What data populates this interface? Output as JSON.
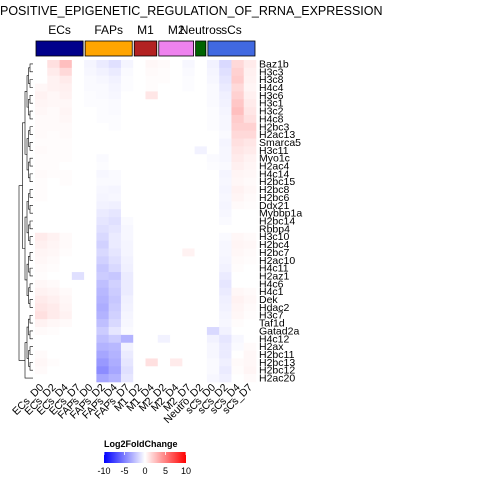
{
  "chart_data": {
    "type": "heatmap",
    "title": "POSITIVE_EPIGENETIC_REGULATION_OF_RRNA_EXPRESSION",
    "groups": [
      {
        "name": "ECs",
        "color": "#00008B"
      },
      {
        "name": "FAPs",
        "color": "#FFA500"
      },
      {
        "name": "M1",
        "color": "#B22222"
      },
      {
        "name": "M2",
        "color": "#EE82EE"
      },
      {
        "name": "Neutros",
        "color": "#006400"
      },
      {
        "name": "sCs",
        "color": "#4169E1"
      }
    ],
    "columns": [
      {
        "label": "ECs_D0",
        "group": "ECs"
      },
      {
        "label": "ECs_D2",
        "group": "ECs"
      },
      {
        "label": "ECs_D4",
        "group": "ECs"
      },
      {
        "label": "ECs_D7",
        "group": "ECs"
      },
      {
        "label": "FAPs_D0",
        "group": "FAPs"
      },
      {
        "label": "FAPs_D2",
        "group": "FAPs"
      },
      {
        "label": "FAPs_D4",
        "group": "FAPs"
      },
      {
        "label": "FAPs_D7",
        "group": "FAPs"
      },
      {
        "label": "M1_D2",
        "group": "M1"
      },
      {
        "label": "M1_D4",
        "group": "M1"
      },
      {
        "label": "M2_D2",
        "group": "M2"
      },
      {
        "label": "M2_D4",
        "group": "M2"
      },
      {
        "label": "M2_D7",
        "group": "M2"
      },
      {
        "label": "Neutro_D2",
        "group": "Neutros"
      },
      {
        "label": "sCs_D0",
        "group": "sCs"
      },
      {
        "label": "sCs_D2",
        "group": "sCs"
      },
      {
        "label": "sCs_D4",
        "group": "sCs"
      },
      {
        "label": "sCs_D7",
        "group": "sCs"
      }
    ],
    "rows": [
      "Baz1b",
      "H3c3",
      "H3c8",
      "H4c4",
      "H3c6",
      "H3c1",
      "H3c2",
      "H4c8",
      "H2bc3",
      "H2ac13",
      "Smarca5",
      "H3c11",
      "Myo1c",
      "H2ac4",
      "H4c14",
      "H2bc15",
      "H2bc8",
      "H2bc6",
      "Ddx21",
      "Mybbp1a",
      "H2bc14",
      "Rbbp4",
      "H3c10",
      "H2bc4",
      "H2bc7",
      "H2ac10",
      "H4c11",
      "H2az1",
      "H4c6",
      "H4c1",
      "Dek",
      "Hdac2",
      "H3c7",
      "Taf1d",
      "Gatad2a",
      "H4c12",
      "H2ax",
      "H2bc11",
      "H2bc13",
      "H2bc12",
      "H2ac20"
    ],
    "values": [
      [
        0,
        1.2,
        2.5,
        0,
        -0.4,
        -0.8,
        -1.2,
        -0.4,
        0,
        0.3,
        0.2,
        0,
        -0.3,
        0,
        -0.5,
        -1.5,
        1.5,
        0.8
      ],
      [
        0,
        0.8,
        1.5,
        0,
        -0.3,
        -0.5,
        -0.8,
        -0.2,
        0,
        0.2,
        0.1,
        0,
        -0.2,
        0,
        -0.4,
        -1.2,
        1.8,
        0.6
      ],
      [
        0,
        0.5,
        0.8,
        0,
        -0.2,
        -0.3,
        -0.5,
        -0.1,
        0,
        0.1,
        0.1,
        0,
        -0.1,
        0,
        -0.3,
        -1.0,
        2.0,
        0.5
      ],
      [
        0.3,
        0.5,
        0.6,
        0,
        -0.2,
        -0.2,
        -0.4,
        -0.1,
        0,
        0.1,
        0,
        0,
        -0.1,
        0,
        -0.2,
        -0.8,
        1.5,
        0.4
      ],
      [
        0.5,
        0.3,
        0.5,
        0,
        -0.1,
        -0.2,
        -0.3,
        0,
        0,
        1.0,
        0,
        0,
        0,
        0,
        -0.2,
        -0.6,
        1.8,
        0.6
      ],
      [
        0.4,
        0.3,
        0.3,
        0,
        -0.1,
        -0.1,
        -0.2,
        0,
        0,
        0,
        0,
        0,
        0,
        0,
        -0.2,
        -0.5,
        2.2,
        0.8
      ],
      [
        0.3,
        0.2,
        0.4,
        0,
        0,
        -0.1,
        -0.2,
        0,
        0,
        0,
        0,
        0,
        0,
        0,
        -0.1,
        -0.4,
        2.5,
        1.0
      ],
      [
        0.2,
        0.2,
        0.3,
        0,
        0,
        -0.1,
        -0.1,
        0,
        0,
        0,
        0,
        0,
        0,
        0,
        -0.1,
        -0.3,
        2.0,
        1.2
      ],
      [
        0.2,
        0.2,
        0.2,
        0,
        0,
        0,
        -0.1,
        0,
        0,
        0,
        0,
        0,
        0,
        0,
        -0.1,
        -0.3,
        1.8,
        1.8
      ],
      [
        0.2,
        0.1,
        0.2,
        0,
        0,
        0,
        0,
        0,
        0,
        0,
        0,
        0,
        0,
        0,
        0,
        -0.2,
        1.5,
        1.5
      ],
      [
        0.1,
        0.1,
        0.1,
        0,
        0,
        0,
        0,
        0,
        0,
        0,
        0,
        0,
        0,
        0,
        0,
        -0.4,
        1.2,
        1.0
      ],
      [
        0.2,
        0.1,
        0.1,
        0,
        0,
        0,
        0,
        0,
        0,
        0,
        0,
        0,
        0,
        -0.5,
        0,
        -0.3,
        1.0,
        0.8
      ],
      [
        0.1,
        0.1,
        0.1,
        0,
        0,
        -0.2,
        0,
        0,
        0,
        0,
        0,
        0,
        0,
        0,
        -0.2,
        -0.3,
        0.8,
        0.5
      ],
      [
        0.1,
        0.1,
        0,
        0,
        0,
        -0.1,
        0,
        0,
        0,
        0,
        0,
        0,
        0,
        0,
        -0.1,
        -0.2,
        0.6,
        0.4
      ],
      [
        0.2,
        0.1,
        0.1,
        0,
        0,
        -0.3,
        -0.2,
        0,
        0,
        0,
        0,
        0,
        0,
        0,
        0,
        -0.4,
        0.4,
        0.3
      ],
      [
        0.1,
        0,
        0.1,
        0,
        0,
        -0.2,
        -0.2,
        0,
        0,
        0,
        0,
        0,
        0,
        0,
        0,
        -0.3,
        0.3,
        0.2
      ],
      [
        0.1,
        0,
        0,
        0,
        0,
        -0.3,
        -0.4,
        0,
        0,
        0,
        0,
        0,
        0,
        0,
        0,
        -0.4,
        0.5,
        0.3
      ],
      [
        0.1,
        0,
        0,
        0,
        0,
        -0.4,
        -0.3,
        0,
        0,
        0,
        0,
        0,
        0,
        0,
        0,
        -0.3,
        0.4,
        0.2
      ],
      [
        0,
        0,
        0,
        0,
        0,
        -0.5,
        -0.6,
        0,
        0,
        0,
        0,
        0,
        0,
        0,
        0,
        -0.4,
        0.2,
        0.1
      ],
      [
        0,
        0,
        0,
        0,
        0,
        -0.8,
        -1.0,
        0,
        0,
        0,
        0,
        0,
        0,
        0,
        0,
        -0.3,
        0,
        0
      ],
      [
        0,
        0,
        0,
        0,
        0,
        -1.0,
        -1.2,
        -0.2,
        0,
        0,
        0,
        0,
        0,
        0,
        0,
        -0.2,
        0,
        0
      ],
      [
        0,
        0,
        0,
        0,
        0,
        -1.2,
        -1.0,
        -0.3,
        0,
        0,
        0,
        0,
        0,
        0,
        0,
        0,
        0,
        0
      ],
      [
        0.8,
        0.5,
        0.2,
        0,
        0,
        -1.5,
        -0.8,
        -0.3,
        0,
        0,
        0,
        0,
        0,
        0,
        0,
        -0.2,
        0.3,
        0.2
      ],
      [
        0.6,
        0.4,
        0.2,
        0,
        0,
        -1.8,
        -0.8,
        -0.4,
        0,
        0,
        0,
        0,
        0,
        0,
        0,
        -0.3,
        0.4,
        0.3
      ],
      [
        0.4,
        0.3,
        0.1,
        0,
        0,
        -1.5,
        -1.0,
        -0.4,
        0,
        0,
        0,
        0,
        0.5,
        0,
        0,
        -0.3,
        0.3,
        0.2
      ],
      [
        0.3,
        0.2,
        0,
        0,
        0,
        -1.8,
        -1.2,
        -0.5,
        0,
        0,
        0,
        0,
        0,
        0,
        0,
        -0.4,
        0.2,
        0.1
      ],
      [
        0.2,
        0.1,
        0,
        0,
        0,
        -2.2,
        -1.5,
        -0.6,
        0,
        0,
        0,
        0,
        0,
        0,
        0,
        -0.5,
        0.1,
        0
      ],
      [
        0.1,
        0,
        0,
        -1.2,
        0,
        -2.0,
        -2.2,
        -0.8,
        0,
        0,
        0,
        0,
        0,
        0,
        0,
        -0.8,
        0,
        0
      ],
      [
        0.3,
        0.2,
        0,
        0,
        0,
        -2.5,
        -1.8,
        -0.8,
        0,
        0,
        0,
        0,
        0,
        0,
        0,
        -1.0,
        0,
        0
      ],
      [
        0.5,
        0.4,
        0.2,
        0,
        0,
        -2.8,
        -2.0,
        -0.8,
        0,
        0,
        0,
        0,
        0,
        0,
        0,
        -0.8,
        0.3,
        0.2
      ],
      [
        0.8,
        0.6,
        0.3,
        0,
        0,
        -3.0,
        -2.2,
        -0.6,
        0,
        0,
        0,
        0,
        0,
        0,
        0,
        -0.6,
        0.5,
        0.3
      ],
      [
        1.0,
        0.8,
        0.4,
        0,
        0,
        -3.2,
        -2.0,
        -0.5,
        0,
        0,
        0,
        0,
        0,
        0,
        0,
        -0.5,
        0.4,
        0.2
      ],
      [
        1.2,
        0.8,
        0.5,
        0,
        0,
        -3.0,
        -1.8,
        -0.4,
        0,
        0,
        0,
        0,
        0,
        0,
        0,
        -0.4,
        0.3,
        0.1
      ],
      [
        0.5,
        0.3,
        0.2,
        0,
        0,
        -2.5,
        -1.5,
        -0.3,
        0,
        0,
        0,
        0,
        0,
        0,
        0,
        -0.3,
        0.1,
        0
      ],
      [
        0.2,
        0.1,
        0,
        0,
        0,
        -2.0,
        -1.0,
        -0.2,
        0,
        0,
        0,
        0,
        0,
        0,
        -1.5,
        -0.5,
        0,
        0
      ],
      [
        0,
        0,
        0,
        0,
        0,
        -2.5,
        -2.0,
        -3.0,
        0,
        0,
        -0.5,
        0,
        0,
        0,
        -0.5,
        -1.0,
        -0.3,
        0
      ],
      [
        0,
        0,
        0,
        0,
        0,
        -3.0,
        -2.8,
        -0.5,
        0,
        0,
        0,
        0,
        0,
        0,
        -0.3,
        -0.8,
        -0.2,
        0.2
      ],
      [
        0.2,
        0,
        0,
        0,
        0,
        -3.5,
        -3.0,
        -0.8,
        0,
        0,
        0,
        0,
        0,
        0,
        -0.3,
        -0.8,
        0,
        0.3
      ],
      [
        0.3,
        0.1,
        0,
        0,
        0,
        -4.0,
        -3.2,
        -1.0,
        0,
        1.2,
        0,
        0.8,
        0,
        0,
        -0.2,
        -0.6,
        0.2,
        0.3
      ],
      [
        0.2,
        0,
        0,
        0,
        0,
        -4.5,
        -3.5,
        -1.2,
        0,
        0,
        0,
        0,
        0,
        0,
        -0.2,
        -0.8,
        0.1,
        0.4
      ],
      [
        0,
        0,
        0,
        0,
        0,
        -3.5,
        -3.0,
        -1.0,
        0,
        0,
        0,
        0,
        0,
        0,
        -0.3,
        -0.6,
        0,
        0.2
      ]
    ],
    "legend": {
      "title": "Log2FoldChange",
      "ticks": [
        -10,
        -5,
        0,
        5,
        10
      ],
      "range": [
        -10,
        10
      ],
      "colors": {
        "low": "#0000FF",
        "mid": "#FFFFFF",
        "high": "#FF0000"
      },
      "position": "bottom"
    }
  }
}
